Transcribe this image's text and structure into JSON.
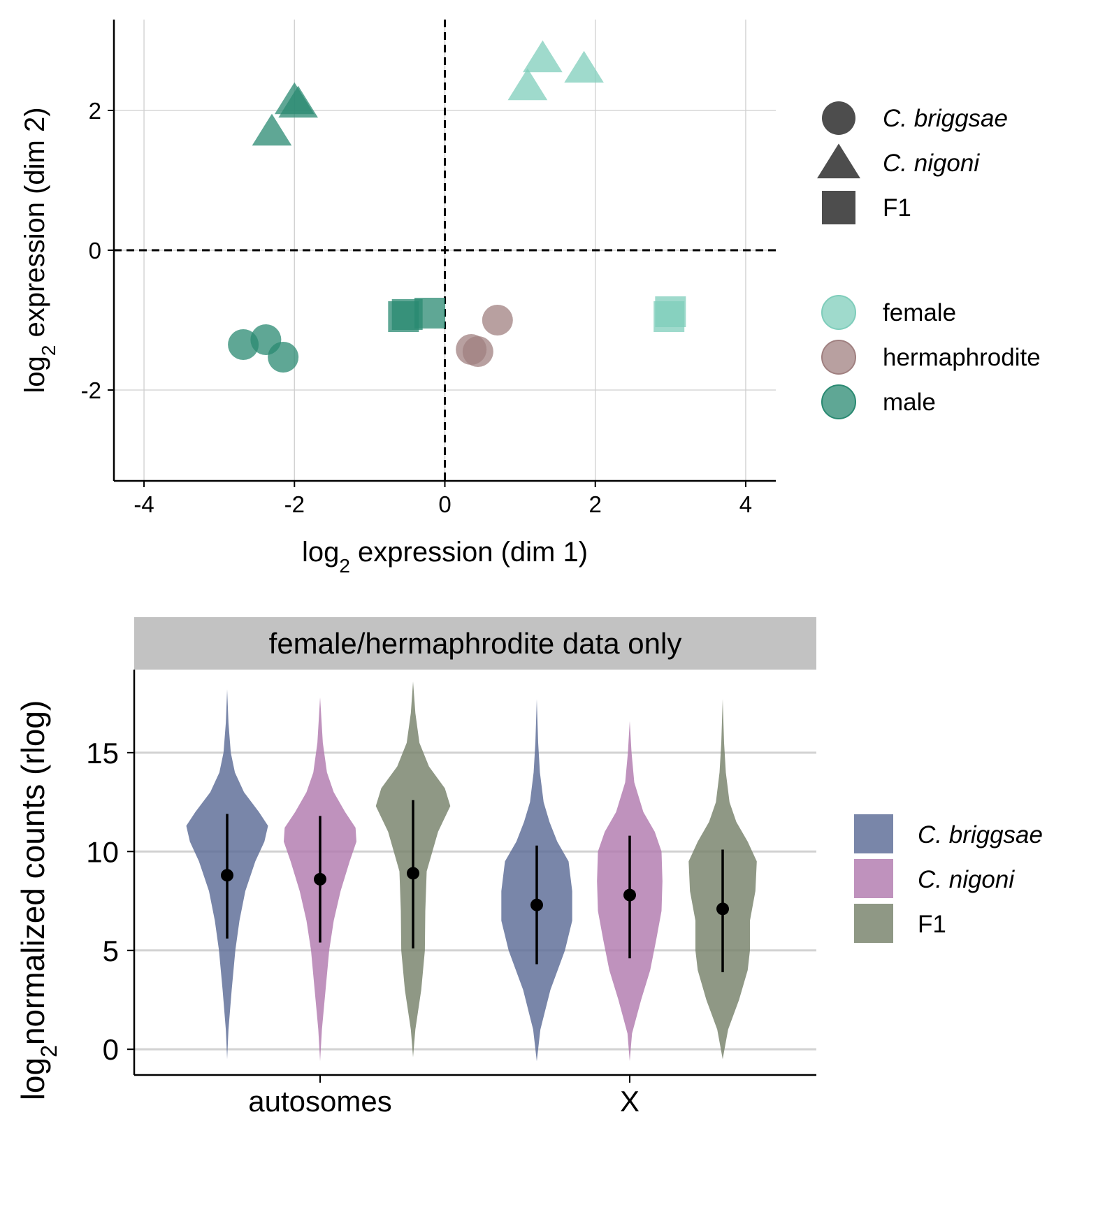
{
  "chart_data": [
    {
      "type": "scatter",
      "xlabel": {
        "prefix": "log",
        "sub": "2",
        "suffix": " expression (dim 1)"
      },
      "ylabel": {
        "prefix": "log",
        "sub": "2",
        "suffix": " expression (dim 2)"
      },
      "xlim": [
        -4.4,
        4.4
      ],
      "ylim": [
        -3.3,
        3.3
      ],
      "xticks": [
        -4,
        -2,
        0,
        2,
        4
      ],
      "yticks": [
        -2,
        0,
        2
      ],
      "grid": true,
      "reference_lines": {
        "x": 0,
        "y": 0,
        "style": "dashed"
      },
      "shape_legend": [
        {
          "label": "C. briggsae",
          "shape": "circle",
          "italic": true
        },
        {
          "label": "C. nigoni",
          "shape": "triangle",
          "italic": true
        },
        {
          "label": "F1",
          "shape": "square",
          "italic": false
        }
      ],
      "color_legend": [
        {
          "label": "female",
          "color": "#7fcdbb"
        },
        {
          "label": "hermaphrodite",
          "color": "#a08080"
        },
        {
          "label": "male",
          "color": "#2a8a72"
        }
      ],
      "points": [
        {
          "x": 1.3,
          "y": 2.75,
          "shape": "triangle",
          "group": "female"
        },
        {
          "x": 1.85,
          "y": 2.6,
          "shape": "triangle",
          "group": "female"
        },
        {
          "x": 1.1,
          "y": 2.35,
          "shape": "triangle",
          "group": "female"
        },
        {
          "x": 3.0,
          "y": -0.88,
          "shape": "square",
          "group": "female"
        },
        {
          "x": 2.98,
          "y": -0.95,
          "shape": "square",
          "group": "female"
        },
        {
          "x": 0.7,
          "y": -1.0,
          "shape": "circle",
          "group": "hermaphrodite"
        },
        {
          "x": 0.35,
          "y": -1.42,
          "shape": "circle",
          "group": "hermaphrodite"
        },
        {
          "x": 0.44,
          "y": -1.45,
          "shape": "circle",
          "group": "hermaphrodite"
        },
        {
          "x": -2.0,
          "y": 2.15,
          "shape": "triangle",
          "group": "male"
        },
        {
          "x": -1.95,
          "y": 2.1,
          "shape": "triangle",
          "group": "male"
        },
        {
          "x": -2.3,
          "y": 1.7,
          "shape": "triangle",
          "group": "male"
        },
        {
          "x": -0.5,
          "y": -0.92,
          "shape": "square",
          "group": "male"
        },
        {
          "x": -0.2,
          "y": -0.9,
          "shape": "square",
          "group": "male"
        },
        {
          "x": -0.55,
          "y": -0.95,
          "shape": "square",
          "group": "male"
        },
        {
          "x": -2.68,
          "y": -1.35,
          "shape": "circle",
          "group": "male"
        },
        {
          "x": -2.38,
          "y": -1.28,
          "shape": "circle",
          "group": "male"
        },
        {
          "x": -2.15,
          "y": -1.53,
          "shape": "circle",
          "group": "male"
        }
      ]
    },
    {
      "type": "violin",
      "facet_label": "female/hermaphrodite data only",
      "categories": [
        "autosomes",
        "X"
      ],
      "ylabel": {
        "prefix": "log",
        "sub": "2",
        "suffix": "normalized counts (rlog)"
      },
      "ylim": [
        -1.3,
        19.2
      ],
      "yticks": [
        0,
        5,
        10,
        15
      ],
      "grid": true,
      "legend": [
        {
          "label": "C. briggsae",
          "color": "#5b6b96",
          "italic": true
        },
        {
          "label": "C. nigoni",
          "color": "#b17aae",
          "italic": true
        },
        {
          "label": "F1",
          "color": "#76816a",
          "italic": false
        }
      ],
      "series": [
        {
          "name": "C. briggsae",
          "color": "#5b6b96",
          "violins": [
            {
              "category": "autosomes",
              "median": 8.8,
              "lower": 5.6,
              "upper": 11.9,
              "min": -0.5,
              "max": 18.2,
              "profile": [
                [
                  -0.5,
                  0
                ],
                [
                  1,
                  0.03
                ],
                [
                  3,
                  0.1
                ],
                [
                  5,
                  0.18
                ],
                [
                  6.5,
                  0.27
                ],
                [
                  8,
                  0.4
                ],
                [
                  9.5,
                  0.62
                ],
                [
                  10.5,
                  0.82
                ],
                [
                  11.3,
                  0.9
                ],
                [
                  12,
                  0.7
                ],
                [
                  13,
                  0.37
                ],
                [
                  14,
                  0.17
                ],
                [
                  15,
                  0.08
                ],
                [
                  16.5,
                  0.03
                ],
                [
                  18.2,
                  0
                ]
              ]
            },
            {
              "category": "X",
              "median": 7.3,
              "lower": 4.3,
              "upper": 10.3,
              "min": -0.6,
              "max": 17.7,
              "profile": [
                [
                  -0.6,
                  0
                ],
                [
                  1,
                  0.08
                ],
                [
                  3,
                  0.3
                ],
                [
                  5,
                  0.62
                ],
                [
                  6.5,
                  0.78
                ],
                [
                  8,
                  0.78
                ],
                [
                  9.5,
                  0.7
                ],
                [
                  10.5,
                  0.45
                ],
                [
                  11.5,
                  0.28
                ],
                [
                  12.5,
                  0.15
                ],
                [
                  14,
                  0.07
                ],
                [
                  15.5,
                  0.03
                ],
                [
                  17.7,
                  0
                ]
              ]
            }
          ]
        },
        {
          "name": "C. nigoni",
          "color": "#b17aae",
          "violins": [
            {
              "category": "autosomes",
              "median": 8.6,
              "lower": 5.4,
              "upper": 11.8,
              "min": -0.6,
              "max": 17.8,
              "profile": [
                [
                  -0.6,
                  0
                ],
                [
                  1,
                  0.04
                ],
                [
                  3,
                  0.12
                ],
                [
                  5,
                  0.2
                ],
                [
                  6.5,
                  0.3
                ],
                [
                  8,
                  0.45
                ],
                [
                  9.5,
                  0.65
                ],
                [
                  10.5,
                  0.8
                ],
                [
                  11.2,
                  0.78
                ],
                [
                  12,
                  0.55
                ],
                [
                  13,
                  0.3
                ],
                [
                  14,
                  0.15
                ],
                [
                  15.5,
                  0.06
                ],
                [
                  17.8,
                  0
                ]
              ]
            },
            {
              "category": "X",
              "median": 7.8,
              "lower": 4.6,
              "upper": 10.8,
              "min": -0.6,
              "max": 16.6,
              "profile": [
                [
                  -0.6,
                  0
                ],
                [
                  0.8,
                  0.05
                ],
                [
                  2.5,
                  0.25
                ],
                [
                  4,
                  0.45
                ],
                [
                  5.5,
                  0.58
                ],
                [
                  7,
                  0.7
                ],
                [
                  8.5,
                  0.72
                ],
                [
                  10,
                  0.7
                ],
                [
                  11,
                  0.55
                ],
                [
                  12,
                  0.3
                ],
                [
                  13.5,
                  0.1
                ],
                [
                  15,
                  0.04
                ],
                [
                  16.6,
                  0
                ]
              ]
            }
          ]
        },
        {
          "name": "F1",
          "color": "#76816a",
          "violins": [
            {
              "category": "autosomes",
              "median": 8.9,
              "lower": 5.1,
              "upper": 12.6,
              "min": -0.4,
              "max": 18.6,
              "profile": [
                [
                  -0.4,
                  0
                ],
                [
                  1,
                  0.05
                ],
                [
                  3,
                  0.18
                ],
                [
                  5,
                  0.26
                ],
                [
                  7,
                  0.27
                ],
                [
                  9,
                  0.3
                ],
                [
                  11,
                  0.55
                ],
                [
                  12.3,
                  0.82
                ],
                [
                  13.2,
                  0.7
                ],
                [
                  14.3,
                  0.35
                ],
                [
                  15.5,
                  0.14
                ],
                [
                  17,
                  0.05
                ],
                [
                  18.6,
                  0
                ]
              ]
            },
            {
              "category": "X",
              "median": 7.1,
              "lower": 3.9,
              "upper": 10.1,
              "min": -0.5,
              "max": 17.7,
              "profile": [
                [
                  -0.5,
                  0
                ],
                [
                  1,
                  0.12
                ],
                [
                  2.5,
                  0.36
                ],
                [
                  4,
                  0.55
                ],
                [
                  5,
                  0.6
                ],
                [
                  6.5,
                  0.6
                ],
                [
                  8,
                  0.72
                ],
                [
                  9.5,
                  0.75
                ],
                [
                  10.5,
                  0.55
                ],
                [
                  11.5,
                  0.3
                ],
                [
                  12.5,
                  0.15
                ],
                [
                  14,
                  0.07
                ],
                [
                  15.5,
                  0.03
                ],
                [
                  17.7,
                  0
                ]
              ]
            }
          ]
        }
      ]
    }
  ]
}
